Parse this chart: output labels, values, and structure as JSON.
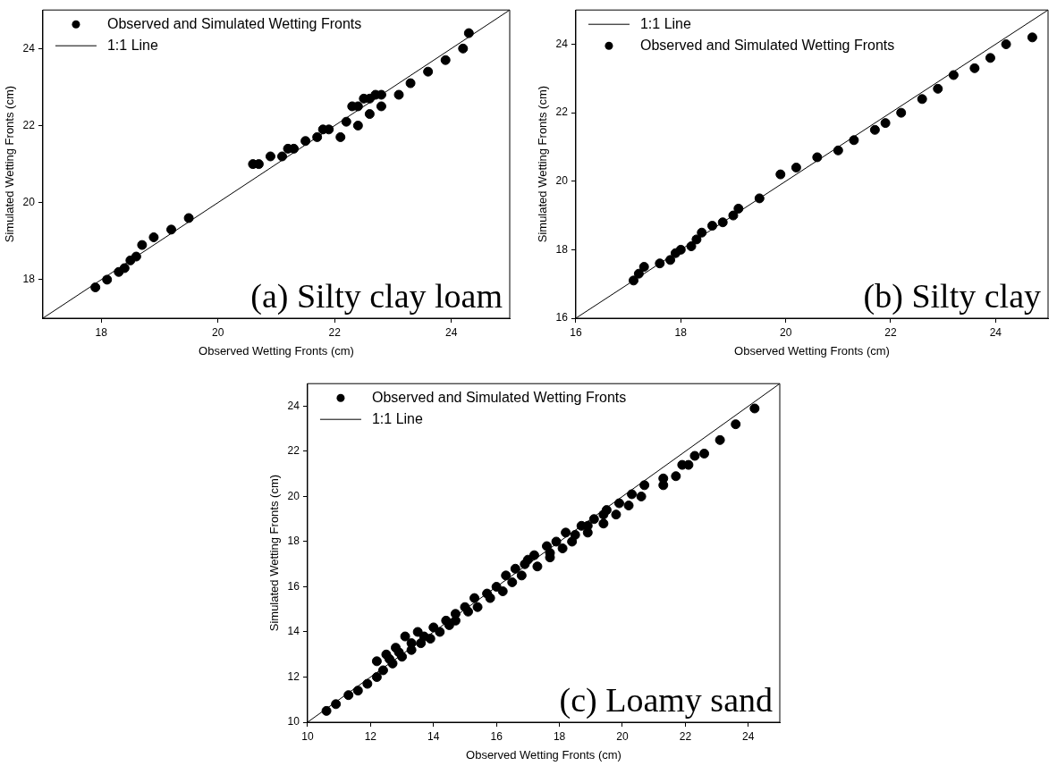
{
  "chart_data": [
    {
      "type": "scatter",
      "xlabel": "Observed Wetting Fronts (cm)",
      "ylabel": "Simulated Wetting Fronts (cm)",
      "xlim": [
        17,
        25
      ],
      "ylim": [
        17,
        25
      ],
      "xticks": [
        18,
        20,
        22,
        24
      ],
      "yticks": [
        18,
        20,
        22,
        24
      ],
      "grid": false,
      "legend": "top left",
      "annotations": [
        "(a) Silty clay loam"
      ],
      "series": [
        {
          "name": "Observed and Simulated Wetting Fronts",
          "type": "scatter",
          "color": "#000000",
          "marker": "circle",
          "x": [
            17.9,
            18.1,
            18.3,
            18.4,
            18.5,
            18.6,
            18.7,
            18.9,
            19.2,
            19.5,
            20.6,
            20.7,
            20.9,
            21.1,
            21.2,
            21.3,
            21.5,
            21.7,
            21.8,
            21.9,
            22.1,
            22.2,
            22.3,
            22.4,
            22.4,
            22.5,
            22.6,
            22.6,
            22.7,
            22.8,
            22.8,
            23.1,
            23.3,
            23.6,
            23.9,
            24.2,
            24.3
          ],
          "values": [
            17.8,
            18.0,
            18.2,
            18.3,
            18.5,
            18.6,
            18.9,
            19.1,
            19.3,
            19.6,
            21.0,
            21.0,
            21.2,
            21.2,
            21.4,
            21.4,
            21.6,
            21.7,
            21.9,
            21.9,
            21.7,
            22.1,
            22.5,
            22.5,
            22.0,
            22.7,
            22.7,
            22.3,
            22.8,
            22.8,
            22.5,
            22.8,
            23.1,
            23.4,
            23.7,
            24.0,
            24.4
          ]
        },
        {
          "name": "1:1 Line",
          "type": "line",
          "color": "#000000",
          "marker": "none",
          "line_style": "solid",
          "x": [
            17,
            25
          ],
          "values": [
            17,
            25
          ]
        }
      ]
    },
    {
      "type": "scatter",
      "xlabel": "Observed Wetting Fronts (cm)",
      "ylabel": "Simulated Wetting Fronts (cm)",
      "xlim": [
        16,
        25
      ],
      "ylim": [
        16,
        25
      ],
      "xticks": [
        16,
        18,
        20,
        22,
        24
      ],
      "yticks": [
        16,
        18,
        20,
        22,
        24
      ],
      "grid": false,
      "legend": "top left",
      "annotations": [
        "(b) Silty clay"
      ],
      "series": [
        {
          "name": "1:1 Line",
          "type": "line",
          "color": "#000000",
          "marker": "none",
          "line_style": "solid",
          "x": [
            16,
            25
          ],
          "values": [
            16,
            25
          ]
        },
        {
          "name": "Observed and Simulated Wetting Fronts",
          "type": "scatter",
          "color": "#000000",
          "marker": "circle",
          "x": [
            17.1,
            17.2,
            17.3,
            17.6,
            17.8,
            17.9,
            18.0,
            18.2,
            18.3,
            18.4,
            18.6,
            18.8,
            19.0,
            19.1,
            19.5,
            19.9,
            20.2,
            20.6,
            21.0,
            21.3,
            21.7,
            21.9,
            22.2,
            22.6,
            22.9,
            23.2,
            23.6,
            23.9,
            24.2,
            24.7
          ],
          "values": [
            17.1,
            17.3,
            17.5,
            17.6,
            17.7,
            17.9,
            18.0,
            18.1,
            18.3,
            18.5,
            18.7,
            18.8,
            19.0,
            19.2,
            19.5,
            20.2,
            20.4,
            20.7,
            20.9,
            21.2,
            21.5,
            21.7,
            22.0,
            22.4,
            22.7,
            23.1,
            23.3,
            23.6,
            24.0,
            24.2
          ]
        }
      ]
    },
    {
      "type": "scatter",
      "xlabel": "Observed Wetting Fronts (cm)",
      "ylabel": "Simulated Wetting Fronts (cm)",
      "xlim": [
        10,
        25
      ],
      "ylim": [
        10,
        25
      ],
      "xticks": [
        10,
        12,
        14,
        16,
        18,
        20,
        22,
        24
      ],
      "yticks": [
        10,
        12,
        14,
        16,
        18,
        20,
        22,
        24
      ],
      "grid": false,
      "legend": "top left",
      "annotations": [
        "(c) Loamy sand"
      ],
      "series": [
        {
          "name": "Observed and Simulated Wetting Fronts",
          "type": "scatter",
          "color": "#000000",
          "marker": "circle",
          "x": [
            10.6,
            10.9,
            11.3,
            11.6,
            11.9,
            12.2,
            12.2,
            12.4,
            12.5,
            12.6,
            12.7,
            12.8,
            12.9,
            13.0,
            13.1,
            13.3,
            13.3,
            13.5,
            13.6,
            13.7,
            13.9,
            14.0,
            14.2,
            14.4,
            14.5,
            14.7,
            14.7,
            15.0,
            15.1,
            15.3,
            15.4,
            15.7,
            15.8,
            16.0,
            16.2,
            16.3,
            16.5,
            16.6,
            16.8,
            16.9,
            17.0,
            17.2,
            17.3,
            17.6,
            17.7,
            17.7,
            17.9,
            18.1,
            18.2,
            18.4,
            18.5,
            18.7,
            18.9,
            18.9,
            19.1,
            19.4,
            19.4,
            19.5,
            19.8,
            19.9,
            20.2,
            20.3,
            20.6,
            20.7,
            21.3,
            21.3,
            21.7,
            21.9,
            22.1,
            22.3,
            22.6,
            23.1,
            23.6,
            24.2
          ],
          "values": [
            10.5,
            10.8,
            11.2,
            11.4,
            11.7,
            12.0,
            12.7,
            12.3,
            13.0,
            12.8,
            12.6,
            13.3,
            13.1,
            12.9,
            13.8,
            13.2,
            13.5,
            14.0,
            13.5,
            13.8,
            13.7,
            14.2,
            14.0,
            14.5,
            14.3,
            14.8,
            14.5,
            15.1,
            14.9,
            15.5,
            15.1,
            15.7,
            15.5,
            16.0,
            15.8,
            16.5,
            16.2,
            16.8,
            16.5,
            17.0,
            17.2,
            17.4,
            16.9,
            17.8,
            17.5,
            17.3,
            18.0,
            17.7,
            18.4,
            18.0,
            18.3,
            18.7,
            18.4,
            18.7,
            19.0,
            18.8,
            19.2,
            19.4,
            19.2,
            19.7,
            19.6,
            20.1,
            20.0,
            20.5,
            20.5,
            20.8,
            20.9,
            21.4,
            21.4,
            21.8,
            21.9,
            22.5,
            23.2,
            23.9
          ]
        },
        {
          "name": "1:1 Line",
          "type": "line",
          "color": "#000000",
          "marker": "none",
          "line_style": "solid",
          "x": [
            10,
            25
          ],
          "values": [
            10,
            25
          ]
        }
      ]
    }
  ]
}
